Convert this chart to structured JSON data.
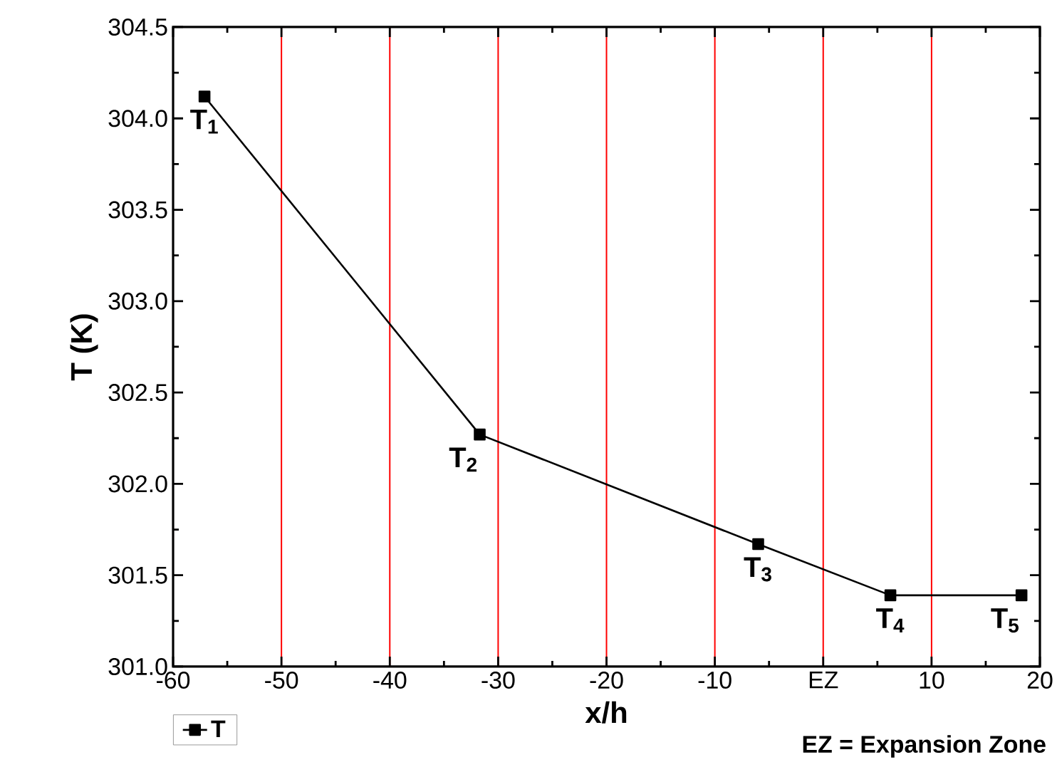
{
  "chart_data": {
    "type": "line",
    "xlabel": "x/h",
    "ylabel": "T (K)",
    "series": [
      {
        "name": "T",
        "color": "#000000",
        "x": [
          -57.1,
          -31.7,
          -6.0,
          6.2,
          18.3
        ],
        "values": [
          304.12,
          302.27,
          301.67,
          301.39,
          301.39
        ]
      }
    ],
    "xlim": [
      -60,
      20
    ],
    "ylim": [
      301.0,
      304.5
    ],
    "xticks": [
      -60,
      -50,
      -40,
      -30,
      -20,
      -10,
      {
        "value": 0,
        "label": "EZ"
      },
      10,
      20
    ],
    "yticks": [
      {
        "value": 301.0,
        "label": "301.0"
      },
      301.5,
      {
        "value": 302.0,
        "label": "302.0"
      },
      302.5,
      {
        "value": 303.0,
        "label": "303.0"
      },
      303.5,
      {
        "value": 304.0,
        "label": "304.0"
      },
      304.5
    ],
    "grid": "x",
    "legend": "bottom left",
    "marker": "square",
    "line_style": "solid",
    "annotations": [
      {
        "text": "T$_{1}$",
        "x": -57.1,
        "y": 304.12
      },
      {
        "text": "T$_{2}$",
        "x": -31.7,
        "y": 302.27
      },
      {
        "text": "T$_{3}$",
        "x": -6.0,
        "y": 301.67
      },
      {
        "text": "T$_{4}$",
        "x": 6.2,
        "y": 301.39
      },
      {
        "text": "T$_{5}$",
        "x": 18.3,
        "y": 301.39
      },
      "EZ = Expansion Zone"
    ]
  }
}
